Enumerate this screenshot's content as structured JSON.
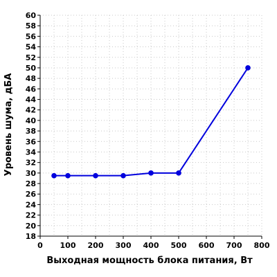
{
  "chart_data": {
    "type": "line",
    "title": "",
    "xlabel": "Выходная мощность блока питания, Вт",
    "ylabel": "Уровень шума, дБА",
    "xlim": [
      0,
      800
    ],
    "ylim": [
      18,
      60
    ],
    "x_ticks": [
      0,
      100,
      200,
      300,
      400,
      500,
      600,
      700,
      800
    ],
    "x_tick_labels": [
      "0",
      "100",
      "200",
      "300",
      "400",
      "500",
      "600",
      "700",
      "800"
    ],
    "y_ticks": [
      18,
      20,
      22,
      24,
      26,
      28,
      30,
      32,
      34,
      36,
      38,
      40,
      42,
      44,
      46,
      48,
      50,
      52,
      54,
      56,
      58,
      60
    ],
    "y_tick_labels": [
      "18",
      "20",
      "22",
      "24",
      "26",
      "28",
      "30",
      "32",
      "34",
      "36",
      "38",
      "40",
      "42",
      "44",
      "46",
      "48",
      "50",
      "52",
      "54",
      "56",
      "58",
      "60"
    ],
    "grid": true,
    "series": [
      {
        "x": [
          50,
          100,
          200,
          300,
          400,
          500,
          750
        ],
        "values": [
          29.5,
          29.5,
          29.5,
          29.5,
          30,
          30,
          50
        ],
        "color": "#0000dd"
      }
    ]
  }
}
